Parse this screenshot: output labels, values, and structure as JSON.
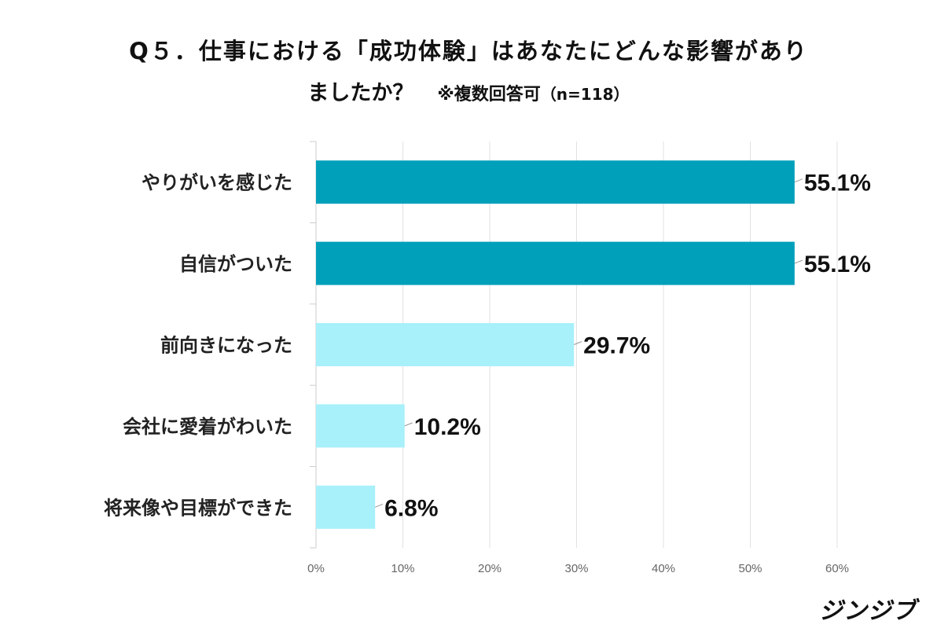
{
  "chart_data": {
    "type": "bar",
    "orientation": "horizontal",
    "title_line1": "Q５．仕事における「成功体験」はあなたにどんな影響があり",
    "title_line2": "ましたか？",
    "note": "※複数回答可",
    "sample": "（n=118）",
    "categories": [
      "やりがいを感じた",
      "自信がついた",
      "前向きになった",
      "会社に愛着がわいた",
      "将来像や目標ができた"
    ],
    "values": [
      55.1,
      55.1,
      29.7,
      10.2,
      6.8
    ],
    "data_labels": [
      "55.1%",
      "55.1%",
      "29.7%",
      "10.2%",
      "6.8%"
    ],
    "bar_colors": [
      "#00A0BB",
      "#00A0BB",
      "#A8F0FA",
      "#A8F0FA",
      "#A8F0FA"
    ],
    "xlim": [
      0,
      60
    ],
    "x_ticks": [
      "0%",
      "10%",
      "20%",
      "30%",
      "40%",
      "50%",
      "60%"
    ],
    "grid": true,
    "xlabel": "",
    "ylabel": ""
  },
  "brand": "ジンジブ"
}
